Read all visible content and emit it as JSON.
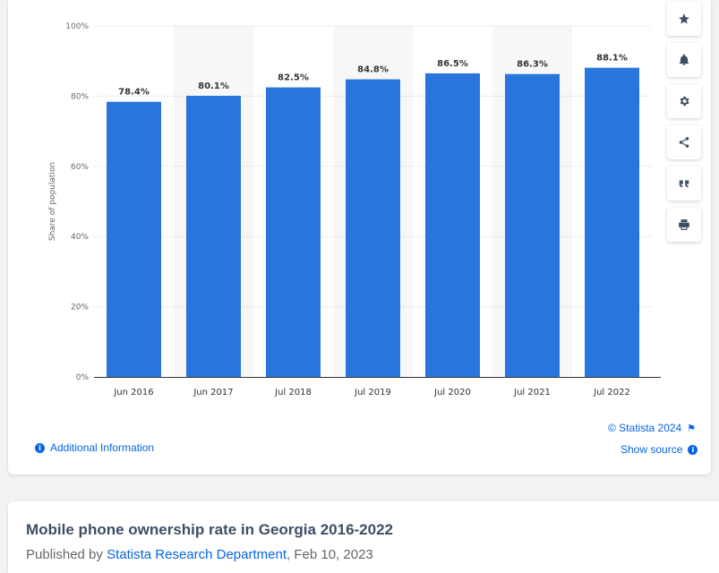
{
  "chart_data": {
    "type": "bar",
    "categories": [
      "Jun 2016",
      "Jun 2017",
      "Jul 2018",
      "Jul 2019",
      "Jul 2020",
      "Jul 2021",
      "Jul 2022"
    ],
    "values": [
      78.4,
      80.1,
      82.5,
      84.8,
      86.5,
      86.3,
      88.1
    ],
    "data_labels": [
      "78.4%",
      "80.1%",
      "82.5%",
      "84.8%",
      "86.5%",
      "86.3%",
      "88.1%"
    ],
    "ylabel": "Share of population",
    "ylim": [
      0,
      100
    ],
    "yticks": [
      0,
      20,
      40,
      60,
      80,
      100
    ],
    "ytick_labels": [
      "0%",
      "20%",
      "40%",
      "60%",
      "80%",
      "100%"
    ],
    "grid": true,
    "bar_color": "#2876dd"
  },
  "tools": [
    {
      "name": "favorite",
      "icon": "star-icon"
    },
    {
      "name": "notification",
      "icon": "bell-icon"
    },
    {
      "name": "settings",
      "icon": "gear-icon"
    },
    {
      "name": "share",
      "icon": "share-icon"
    },
    {
      "name": "cite",
      "icon": "quote-icon"
    },
    {
      "name": "print",
      "icon": "print-icon"
    }
  ],
  "footer": {
    "additional_info": "Additional Information",
    "copyright": "© Statista 2024",
    "show_source": "Show source",
    "info_glyph": "i"
  },
  "article": {
    "title": "Mobile phone ownership rate in Georgia 2016-2022",
    "published_prefix": "Published by",
    "author": "Statista Research Department",
    "date": ", Feb 10, 2023"
  },
  "colors": {
    "accent": "#0666e5",
    "bar": "#2876dd",
    "title": "#3d4f66"
  }
}
